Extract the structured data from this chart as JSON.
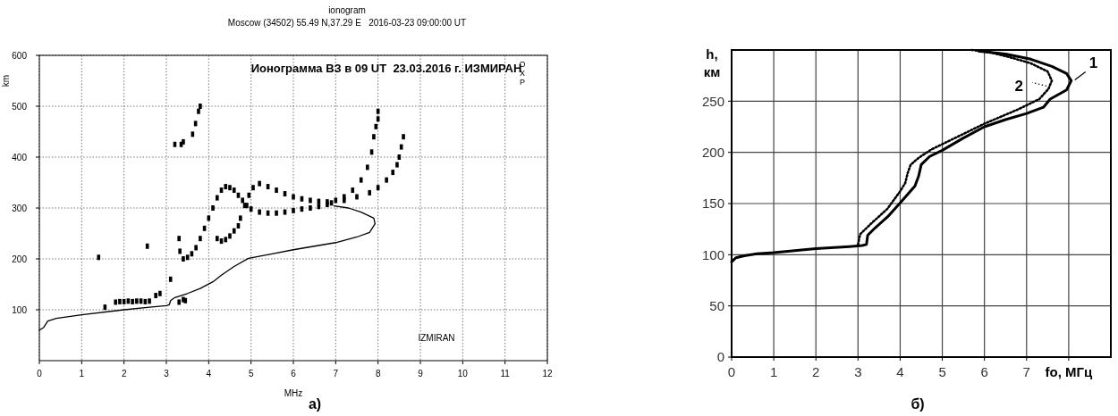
{
  "chart_data": [
    {
      "type": "scatter",
      "title": "ionogram",
      "subtitle": "Moscow (34502) 55.49 N,37.29 E   2016-03-23 09:00:00 UT",
      "xlabel": "MHz",
      "ylabel": "km",
      "xlim": [
        0,
        12
      ],
      "ylim": [
        0,
        600
      ],
      "xticks": [
        0,
        1,
        2,
        3,
        4,
        5,
        6,
        7,
        8,
        9,
        10,
        11,
        12
      ],
      "yticks": [
        100,
        200,
        300,
        400,
        500,
        600
      ],
      "grid": true,
      "marker": "square",
      "annotations": [
        "Ионограмма ВЗ в 09 UT  23.03.2016 г. ИЗМИРАН",
        "OXP",
        "IZMIRAN",
        "а)"
      ],
      "series": [
        {
          "color": "#000000",
          "x": [
            1.8,
            1.9,
            2.0,
            2.1,
            2.2,
            2.3,
            2.4,
            2.5,
            2.6,
            2.75,
            2.85,
            1.4,
            1.55,
            2.55,
            3.1,
            3.3,
            3.4,
            3.45
          ],
          "values": [
            115,
            116,
            116,
            117,
            116,
            117,
            117,
            116,
            117,
            128,
            132,
            203,
            105,
            225,
            160,
            115,
            120,
            118
          ]
        },
        {
          "color": "#000000",
          "x": [
            3.3,
            3.32,
            3.4,
            3.5,
            3.6,
            3.7,
            3.8,
            3.9,
            4.0,
            4.1,
            4.2,
            4.3,
            4.4,
            4.5,
            4.6,
            4.7,
            4.8,
            4.9,
            5.0,
            5.2,
            5.4,
            5.6,
            5.8,
            6.0,
            6.2,
            6.4,
            6.6,
            6.8,
            6.9
          ],
          "values": [
            240,
            215,
            200,
            203,
            210,
            222,
            240,
            260,
            280,
            300,
            320,
            335,
            342,
            340,
            335,
            325,
            315,
            305,
            298,
            292,
            290,
            290,
            292,
            295,
            298,
            300,
            303,
            307,
            310
          ]
        },
        {
          "color": "#000000",
          "x": [
            4.2,
            4.3,
            4.4,
            4.5,
            4.6,
            4.7,
            4.75,
            4.85,
            4.95,
            5.05,
            5.2,
            5.4,
            5.6,
            5.8,
            6.0,
            6.2,
            6.4,
            6.6,
            6.8,
            7.0,
            7.2,
            7.4,
            7.6,
            7.75,
            7.85,
            7.9,
            7.95,
            8.0,
            8.0
          ],
          "values": [
            240,
            235,
            238,
            245,
            255,
            265,
            280,
            305,
            325,
            340,
            348,
            342,
            335,
            328,
            322,
            318,
            315,
            313,
            312,
            315,
            322,
            335,
            355,
            380,
            410,
            440,
            460,
            475,
            490
          ]
        },
        {
          "color": "#000000",
          "x": [
            7.2,
            7.5,
            7.8,
            8.0,
            8.2,
            8.35,
            8.45,
            8.5,
            8.55,
            8.6
          ],
          "values": [
            315,
            322,
            330,
            340,
            355,
            370,
            385,
            400,
            420,
            440
          ]
        },
        {
          "color": "#000000",
          "x": [
            3.2,
            3.35,
            3.4,
            3.62,
            3.69,
            3.76,
            3.8
          ],
          "values": [
            425,
            425,
            430,
            445,
            466,
            490,
            500
          ]
        },
        {
          "type": "line",
          "marker": "none",
          "color": "#000000",
          "x": [
            0,
            0.1,
            0.2,
            0.4,
            1,
            2,
            2.6,
            3.0,
            3.07,
            3.1,
            3.2,
            3.5,
            3.8,
            4.1,
            4.3,
            4.6,
            4.94,
            5.5,
            6,
            6.5,
            7,
            7.5,
            7.8,
            7.93,
            7.9,
            7.6,
            7.3,
            6.96
          ],
          "values": [
            60,
            65,
            78,
            83,
            90,
            100,
            105,
            108,
            110,
            118,
            124,
            132,
            142,
            155,
            168,
            185,
            201,
            210,
            218,
            225,
            232,
            243,
            252,
            269,
            280,
            292,
            300,
            304
          ]
        }
      ]
    },
    {
      "type": "line",
      "xlabel": "fo, МГц",
      "ylabel": "h, км",
      "xlim": [
        0,
        9
      ],
      "ylim": [
        0,
        300
      ],
      "xticks": [
        0,
        1,
        2,
        3,
        4,
        5,
        6,
        7,
        {
          "value": 8,
          "label": null
        }
      ],
      "yticks": [
        0,
        50,
        100,
        150,
        200,
        250
      ],
      "grid": true,
      "annotations": [
        "б)"
      ],
      "series": [
        {
          "name": "1",
          "color": "#000000",
          "x": [
            0,
            0.1,
            0.3,
            0.6,
            1,
            2,
            2.8,
            3.1,
            3.2,
            3.23,
            3.4,
            3.7,
            4.01,
            4.2,
            4.35,
            4.44,
            4.5,
            4.7,
            5.0,
            5.5,
            6.0,
            6.5,
            7.0,
            7.4,
            7.56,
            7.95,
            8.06,
            7.95,
            7.6,
            7.1,
            6.5,
            5.86
          ],
          "values": [
            93,
            97,
            99,
            101,
            102,
            106,
            108,
            109,
            110,
            119,
            126,
            137,
            151,
            160,
            167,
            177,
            188,
            196,
            202,
            214,
            225,
            232,
            238,
            244,
            252,
            261,
            270,
            277,
            284,
            291,
            296,
            299
          ]
        },
        {
          "name": "2",
          "color": "#000000",
          "line_style": "dotted",
          "x": [
            3.0,
            3.05,
            3.3,
            3.7,
            4.0,
            4.12,
            4.18,
            4.25,
            4.45,
            4.75,
            5.2,
            6.0,
            6.8,
            7.3,
            7.52,
            7.6,
            7.5,
            7.1,
            6.6,
            6.1,
            5.7
          ],
          "values": [
            110,
            120,
            130,
            145,
            162,
            170,
            180,
            188,
            195,
            203,
            212,
            228,
            242,
            252,
            262,
            270,
            279,
            287,
            293,
            298,
            300
          ]
        }
      ]
    }
  ]
}
